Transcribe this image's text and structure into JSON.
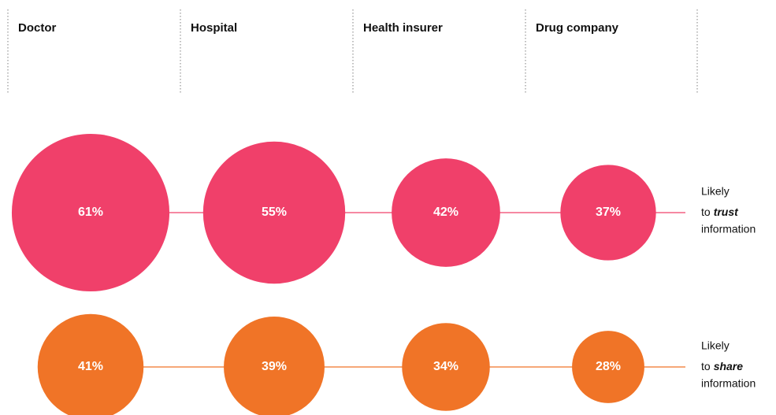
{
  "chart_data": {
    "type": "bubble",
    "categories": [
      "Doctor",
      "Hospital",
      "Health insurer",
      "Drug company"
    ],
    "series": [
      {
        "label": {
          "line1": "Likely",
          "prefix": "to",
          "emphasis": "trust",
          "line3": "information"
        },
        "color": "#f0406a",
        "values": [
          61,
          55,
          42,
          37
        ],
        "value_labels": [
          "61%",
          "55%",
          "42%",
          "37%"
        ]
      },
      {
        "label": {
          "line1": "Likely",
          "prefix": "to",
          "emphasis": "share",
          "line3": "information"
        },
        "color": "#f07427",
        "values": [
          41,
          39,
          34,
          28
        ],
        "value_labels": [
          "41%",
          "39%",
          "34%",
          "28%"
        ]
      }
    ]
  }
}
